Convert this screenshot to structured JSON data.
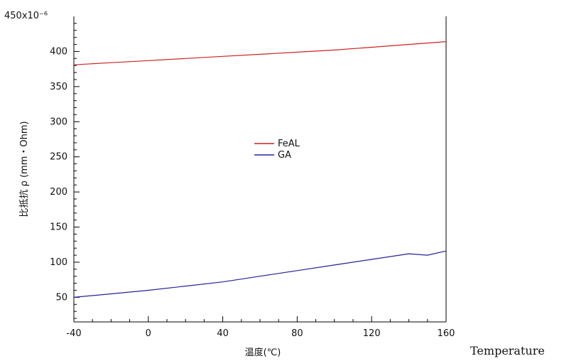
{
  "chart_data": {
    "type": "line",
    "title": "",
    "xlabel": "温度(℃)",
    "ylabel": "比抵抗 ρ (mm・Ohm)",
    "y_exponent_label": "450x10⁻⁶",
    "xlim": [
      -40,
      160
    ],
    "ylim": [
      15,
      450
    ],
    "x_ticks": [
      -40,
      0,
      40,
      80,
      120,
      160
    ],
    "y_ticks": [
      50,
      100,
      150,
      200,
      250,
      300,
      350,
      400
    ],
    "grid": false,
    "legend_position": "center",
    "series": [
      {
        "name": "FeAL",
        "color": "#cc2222",
        "x": [
          -40,
          -20,
          0,
          20,
          40,
          60,
          80,
          100,
          120,
          140,
          160
        ],
        "y": [
          381,
          384,
          387,
          390,
          393,
          396,
          399,
          402,
          406,
          410,
          414
        ]
      },
      {
        "name": "GA",
        "color": "#22229e",
        "x": [
          -40,
          -20,
          0,
          20,
          40,
          60,
          80,
          100,
          120,
          140,
          150,
          160
        ],
        "y": [
          50,
          55,
          60,
          66,
          72,
          80,
          88,
          96,
          104,
          112,
          110,
          116
        ]
      }
    ]
  },
  "side_note": "Temperature"
}
